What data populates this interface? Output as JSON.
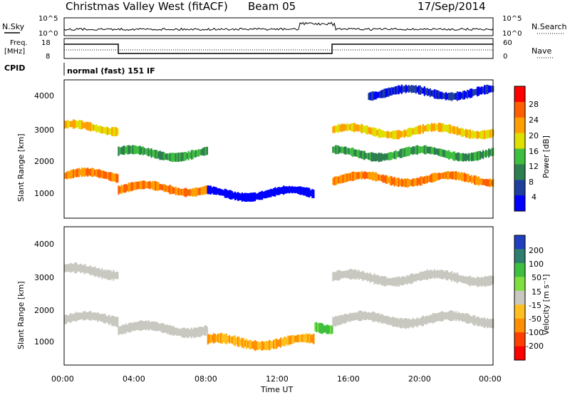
{
  "header": {
    "station": "Christmas Valley West (fitACF)",
    "beam": "Beam 05",
    "date": "17/Sep/2014"
  },
  "noise_panel": {
    "left_label": "N.Sky",
    "right_label": "N.Search",
    "left_ticks": [
      "10^5",
      "10^0"
    ],
    "right_ticks": [
      "10^5",
      "10^0"
    ]
  },
  "freq_panel": {
    "left_label_1": "Freq.",
    "left_label_2": "[MHz]",
    "right_label": "Nave",
    "left_ticks": [
      "18",
      "8"
    ],
    "right_ticks": [
      "60",
      "0"
    ],
    "cpid_label": "CPID",
    "cpid_text": "normal (fast) 151 IF"
  },
  "power_panel": {
    "ylabel": "Slant Range [km]",
    "yticks": [
      "4000",
      "3000",
      "2000",
      "1000"
    ],
    "colorbar_label": "Power [dB]",
    "colorbar_ticks": [
      "28",
      "24",
      "20",
      "16",
      "12",
      "8",
      "4"
    ],
    "colors": [
      "#0000ff",
      "#1f3f9f",
      "#2e7f4f",
      "#3fbf3f",
      "#dfdf00",
      "#ff9f00",
      "#ff5f00",
      "#ff0000"
    ]
  },
  "velocity_panel": {
    "ylabel": "Slant Range [km]",
    "yticks": [
      "4000",
      "3000",
      "2000",
      "1000"
    ],
    "colorbar_label": "Velocity [m s⁻¹]",
    "colorbar_ticks": [
      "200",
      "100",
      "50",
      "15",
      "-15",
      "-50",
      "-100",
      "-200"
    ],
    "colors": [
      "#1f3fbf",
      "#2f7f6f",
      "#3fbf3f",
      "#7fdf3f",
      "#c8c8c0",
      "#ffbf1f",
      "#ff8f00",
      "#ff3f00",
      "#ff0000"
    ]
  },
  "xaxis": {
    "label": "Time UT",
    "ticks": [
      "00:00",
      "04:00",
      "08:00",
      "12:00",
      "16:00",
      "20:00",
      "00:00"
    ]
  },
  "chart_data": {
    "type": "heatmap",
    "x_range_hours": [
      0,
      24
    ],
    "y_range_km": [
      180,
      4500
    ],
    "power_bands": [
      {
        "t_start": 0,
        "t_end": 3,
        "range_km": 1500,
        "power_db": 28
      },
      {
        "t_start": 0,
        "t_end": 3,
        "range_km": 3000,
        "power_db": 24
      },
      {
        "t_start": 3,
        "t_end": 8,
        "range_km": 1100,
        "power_db": 28
      },
      {
        "t_start": 3,
        "t_end": 8,
        "range_km": 2200,
        "power_db": 16
      },
      {
        "t_start": 8,
        "t_end": 14,
        "range_km": 950,
        "power_db": 4
      },
      {
        "t_start": 15,
        "t_end": 24,
        "range_km": 1400,
        "power_db": 28
      },
      {
        "t_start": 15,
        "t_end": 24,
        "range_km": 2900,
        "power_db": 24
      },
      {
        "t_start": 15,
        "t_end": 24,
        "range_km": 2200,
        "power_db": 16
      },
      {
        "t_start": 17,
        "t_end": 24,
        "range_km": 4100,
        "power_db": 8
      }
    ],
    "velocity_bands": [
      {
        "t_start": 0,
        "t_end": 3,
        "range_km": 1600,
        "velocity": 0
      },
      {
        "t_start": 0,
        "t_end": 3,
        "range_km": 3100,
        "velocity": 0
      },
      {
        "t_start": 3,
        "t_end": 8,
        "range_km": 1300,
        "velocity": 0
      },
      {
        "t_start": 8,
        "t_end": 14,
        "range_km": 900,
        "velocity": -50
      },
      {
        "t_start": 14,
        "t_end": 15,
        "range_km": 1400,
        "velocity": 50
      },
      {
        "t_start": 15,
        "t_end": 24,
        "range_km": 1600,
        "velocity": 0
      },
      {
        "t_start": 15,
        "t_end": 24,
        "range_km": 2900,
        "velocity": 0
      }
    ]
  }
}
